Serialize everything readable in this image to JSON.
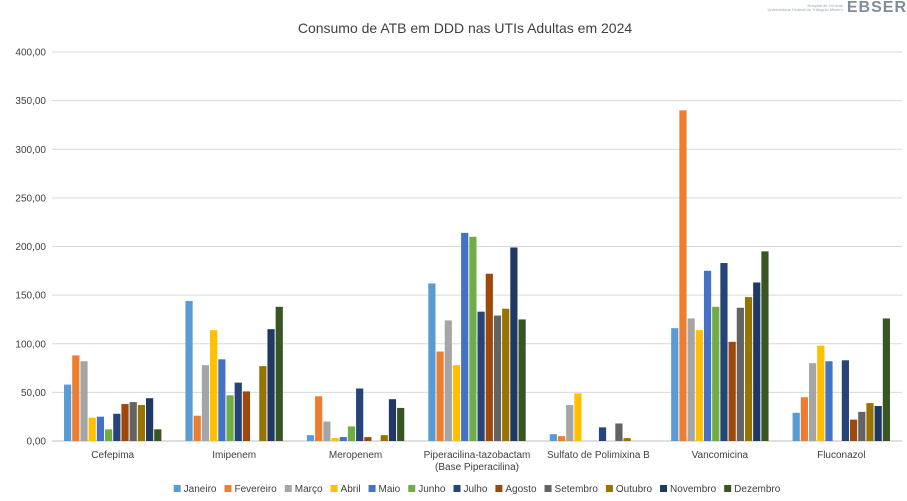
{
  "logo": {
    "text": "EBSER",
    "subtext_1": "Hospital de Clínicas",
    "subtext_2": "Universidade Federal do Triângulo Mineiro"
  },
  "chart_data": {
    "type": "bar",
    "title": "Consumo de ATB em DDD nas UTIs Adultas em 2024",
    "categories": [
      "Cefepima",
      "Imipenem",
      "Meropenem",
      "Piperacilina-tazobactam (Base Piperacilina)",
      "Sulfato de Polimixina B",
      "Vancomicina",
      "Fluconazol"
    ],
    "category_lines": [
      [
        "Cefepima"
      ],
      [
        "Imipenem"
      ],
      [
        "Meropenem"
      ],
      [
        "Piperacilina-tazobactam",
        "(Base Piperacilina)"
      ],
      [
        "Sulfato de Polimixina B"
      ],
      [
        "Vancomicina"
      ],
      [
        "Fluconazol"
      ]
    ],
    "ylim": [
      0,
      400
    ],
    "yticks": [
      "0,00",
      "50,00",
      "100,00",
      "150,00",
      "200,00",
      "250,00",
      "300,00",
      "350,00",
      "400,00"
    ],
    "ytick_values": [
      0,
      50,
      100,
      150,
      200,
      250,
      300,
      350,
      400
    ],
    "grid": true,
    "legend_position": "bottom",
    "series": [
      {
        "name": "Janeiro",
        "color": "#5b9bd5",
        "values": [
          58,
          144,
          6,
          162,
          7,
          116,
          29
        ]
      },
      {
        "name": "Fevereiro",
        "color": "#ed7d31",
        "values": [
          88,
          26,
          46,
          92,
          5,
          340,
          45
        ]
      },
      {
        "name": "Março",
        "color": "#a5a5a5",
        "values": [
          82,
          78,
          20,
          124,
          37,
          126,
          80
        ]
      },
      {
        "name": "Abril",
        "color": "#ffc000",
        "values": [
          24,
          114,
          3,
          78,
          49,
          114,
          98
        ]
      },
      {
        "name": "Maio",
        "color": "#4472c4",
        "values": [
          25,
          84,
          4,
          214,
          0,
          175,
          82
        ]
      },
      {
        "name": "Junho",
        "color": "#70ad47",
        "values": [
          12,
          47,
          15,
          210,
          0,
          138,
          0
        ]
      },
      {
        "name": "Julho",
        "color": "#264478",
        "values": [
          28,
          60,
          54,
          133,
          14,
          183,
          83
        ]
      },
      {
        "name": "Agosto",
        "color": "#9e480e",
        "values": [
          38,
          51,
          4,
          172,
          0,
          102,
          22
        ]
      },
      {
        "name": "Setembro",
        "color": "#636363",
        "values": [
          40,
          0,
          0,
          129,
          18,
          137,
          30
        ]
      },
      {
        "name": "Outubro",
        "color": "#997300",
        "values": [
          37,
          77,
          6,
          136,
          3,
          148,
          39
        ]
      },
      {
        "name": "Novembro",
        "color": "#203864",
        "values": [
          44,
          115,
          43,
          199,
          0,
          163,
          36
        ]
      },
      {
        "name": "Dezembro",
        "color": "#375623",
        "values": [
          12,
          138,
          34,
          125,
          0,
          195,
          126
        ]
      }
    ]
  }
}
